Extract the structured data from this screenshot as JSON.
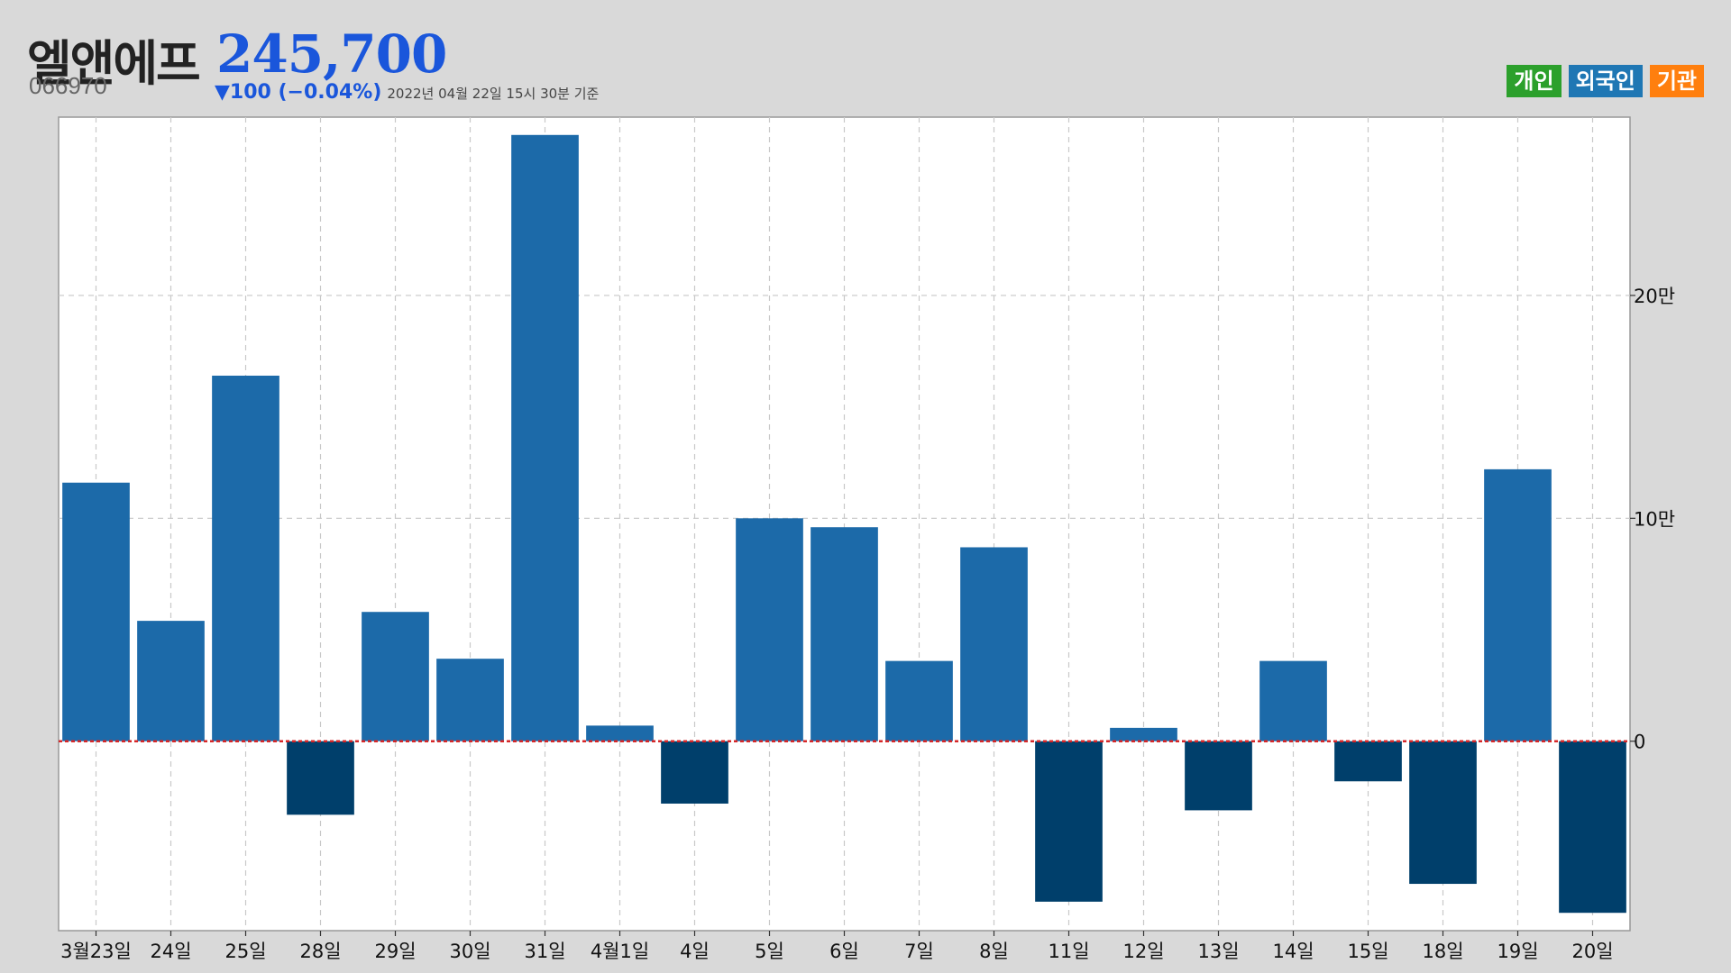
{
  "header": {
    "stock_name": "엘앤에프",
    "stock_code": "066970",
    "price": "245,700",
    "change": "▼100 (−0.04%)",
    "timestamp": "2022년 04월 22일 15시 30분 기준"
  },
  "legend": [
    {
      "label": "개인",
      "color": "#2ca02c"
    },
    {
      "label": "외국인",
      "color": "#1f77b4"
    },
    {
      "label": "기관",
      "color": "#ff7f0e"
    }
  ],
  "colors": {
    "positive_bar": "#1c6aa9",
    "negative_bar": "#003f6b",
    "zero_line": "#d62728",
    "grid": "#c8c8c8",
    "plot_background": "#ffffff"
  },
  "chart_data": {
    "type": "bar",
    "series_name": "외국인",
    "categories": [
      "3월23일",
      "24일",
      "25일",
      "28일",
      "29일",
      "30일",
      "31일",
      "4월1일",
      "4일",
      "5일",
      "6일",
      "7일",
      "8일",
      "11일",
      "12일",
      "13일",
      "14일",
      "15일",
      "18일",
      "19일",
      "20일"
    ],
    "values": [
      116000,
      54000,
      164000,
      -33000,
      58000,
      37000,
      272000,
      7000,
      -28000,
      100000,
      96000,
      36000,
      87000,
      -72000,
      6000,
      -31000,
      36000,
      -18000,
      -64000,
      122000,
      -77000
    ],
    "yticks": [
      0,
      100000,
      200000
    ],
    "ytick_labels": [
      "0",
      "10만",
      "20만"
    ],
    "ylim": [
      -85000,
      280000
    ],
    "y_axis_side": "right",
    "grid": true
  }
}
